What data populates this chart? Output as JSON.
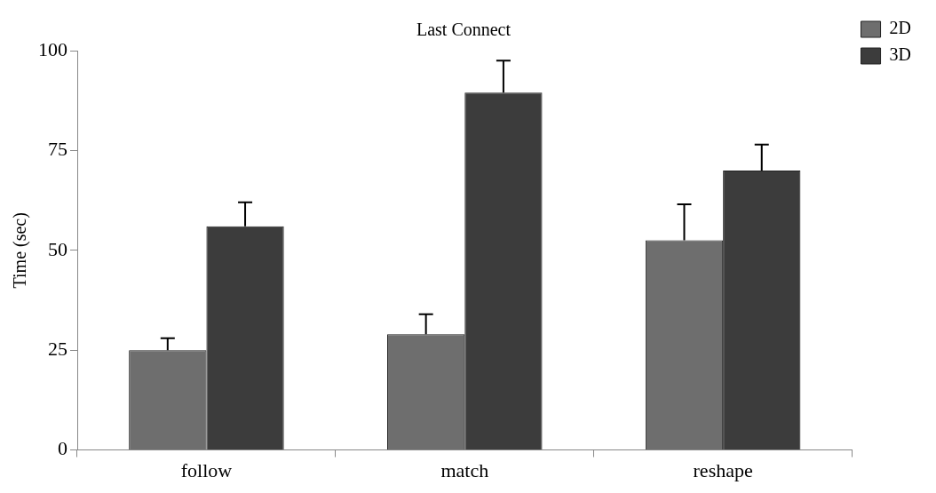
{
  "chart_data": {
    "type": "bar",
    "title": "Last Connect",
    "ylabel": "Time (sec)",
    "categories": [
      "follow",
      "match",
      "reshape"
    ],
    "series": [
      {
        "name": "2D",
        "color": "#6e6e6e",
        "values": [
          25,
          29,
          52.5
        ],
        "errors": [
          [
            25,
            28
          ],
          [
            29,
            34
          ],
          [
            52.5,
            61.5
          ]
        ]
      },
      {
        "name": "3D",
        "color": "#3c3c3c",
        "values": [
          56,
          89.5,
          70
        ],
        "errors": [
          [
            56,
            62
          ],
          [
            89.5,
            97.5
          ],
          [
            70,
            76.5
          ]
        ]
      }
    ],
    "ylim": [
      0,
      100
    ],
    "yticks": [
      0,
      25,
      50,
      75,
      100
    ],
    "grid": false,
    "legend": "top right"
  }
}
